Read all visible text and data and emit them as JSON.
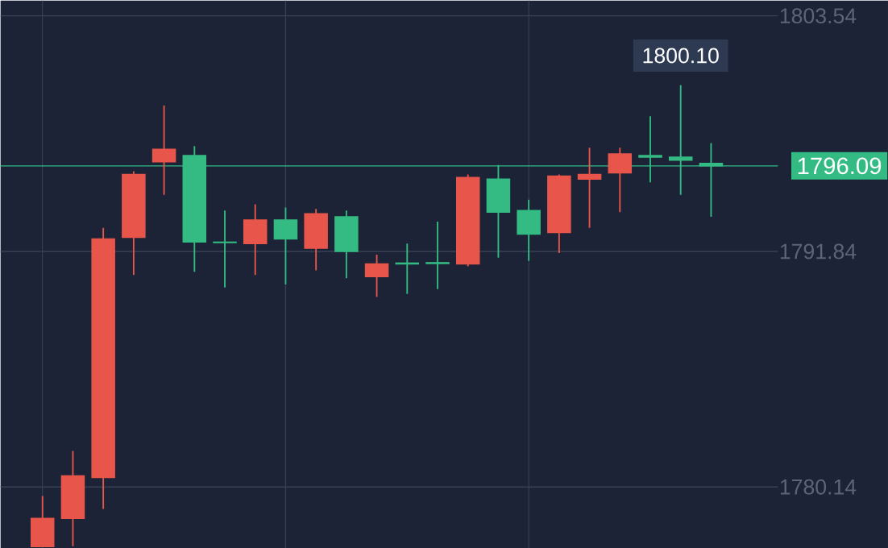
{
  "chart_data": {
    "type": "candlestick",
    "categories": [
      null,
      null,
      null,
      null,
      null,
      null,
      null,
      null,
      null,
      null,
      null,
      null,
      null,
      null,
      null,
      null,
      null,
      null,
      null,
      null,
      null,
      null,
      null
    ],
    "ohlc": [
      [
        1777.18,
        1779.69,
        1777.15,
        1778.58
      ],
      [
        1778.58,
        1781.93,
        1777.2,
        1780.69
      ],
      [
        1780.61,
        1793.01,
        1779.05,
        1792.46
      ],
      [
        1792.54,
        1795.82,
        1790.67,
        1795.66
      ],
      [
        1796.29,
        1799.09,
        1794.65,
        1796.91
      ],
      [
        1796.6,
        1797.07,
        1790.83,
        1792.31
      ],
      [
        1792.3,
        1793.87,
        1790.05,
        1792.28
      ],
      [
        1792.23,
        1794.18,
        1790.67,
        1793.4
      ],
      [
        1793.4,
        1794.02,
        1790.2,
        1792.46
      ],
      [
        1792.0,
        1793.95,
        1790.9,
        1793.71
      ],
      [
        1793.56,
        1793.87,
        1790.51,
        1791.84
      ],
      [
        1790.59,
        1791.68,
        1789.58,
        1791.22
      ],
      [
        1791.26,
        1792.23,
        1789.73,
        1791.22
      ],
      [
        1791.28,
        1793.32,
        1789.97,
        1791.24
      ],
      [
        1791.22,
        1795.66,
        1791.1,
        1795.51
      ],
      [
        1795.43,
        1796.13,
        1791.53,
        1793.79
      ],
      [
        1793.87,
        1794.41,
        1791.37,
        1792.7
      ],
      [
        1792.78,
        1795.66,
        1791.76,
        1795.58
      ],
      [
        1795.43,
        1796.99,
        1793.01,
        1795.66
      ],
      [
        1795.74,
        1796.99,
        1793.79,
        1796.68
      ],
      [
        1796.6,
        1798.55,
        1795.27,
        1796.52
      ],
      [
        1796.52,
        1800.1,
        1794.65,
        1796.37
      ],
      [
        1796.21,
        1797.22,
        1793.56,
        1796.09
      ]
    ],
    "colors": [
      "#e8554a",
      "#e8554a",
      "#e8554a",
      "#e8554a",
      "#e8554a",
      "#33bb83",
      "#33bb83",
      "#e8554a",
      "#33bb83",
      "#e8554a",
      "#33bb83",
      "#e8554a",
      "#33bb83",
      "#33bb83",
      "#e8554a",
      "#33bb83",
      "#33bb83",
      "#e8554a",
      "#e8554a",
      "#e8554a",
      "#33bb83",
      "#33bb83",
      "#33bb83"
    ],
    "ylim": [
      1777.1,
      1804.3
    ],
    "yticks": [
      1780.14,
      1791.84,
      1803.54
    ],
    "grid": true,
    "ref_lines": [
      {
        "axis": "y",
        "value": 1796.09,
        "label": "1796.09",
        "color": "#33bb83"
      }
    ],
    "annotations": [
      {
        "text": "1800.10",
        "y": 1800.1
      }
    ]
  }
}
